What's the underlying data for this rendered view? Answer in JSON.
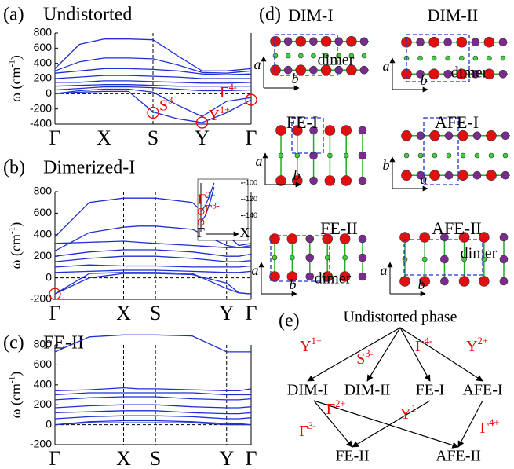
{
  "chart_data": [
    {
      "type": "line",
      "panel": "(a)",
      "title": "Undistorted",
      "ylabel": {
        "text": "ω (cm",
        "sup": "-1",
        "tail": ")"
      },
      "xlim": [
        0,
        4
      ],
      "ylim": [
        -400,
        800
      ],
      "xticks": [
        {
          "value": 0,
          "label": "Γ"
        },
        {
          "value": 1,
          "label": "X"
        },
        {
          "value": 2,
          "label": "S"
        },
        {
          "value": 3,
          "label": "Y"
        },
        {
          "value": 4,
          "label": "Γ"
        }
      ],
      "yticks": [
        -400,
        -200,
        0,
        200,
        400,
        600,
        800
      ],
      "symmetry_lines": true,
      "zero_line": true,
      "x": [
        0,
        0.5,
        1,
        1.5,
        2,
        2.5,
        3,
        3.5,
        4
      ],
      "series": [
        {
          "color": "#1f2fd6",
          "values": [
            330,
            650,
            720,
            720,
            710,
            500,
            300,
            300,
            330
          ]
        },
        {
          "color": "#1f2fd6",
          "values": [
            300,
            420,
            470,
            470,
            460,
            380,
            280,
            270,
            300
          ]
        },
        {
          "color": "#1f2fd6",
          "values": [
            270,
            300,
            330,
            330,
            320,
            300,
            260,
            250,
            260
          ]
        },
        {
          "color": "#1f2fd6",
          "values": [
            200,
            220,
            240,
            240,
            230,
            220,
            200,
            200,
            200
          ]
        },
        {
          "color": "#1f2fd6",
          "values": [
            150,
            150,
            170,
            170,
            160,
            150,
            140,
            140,
            150
          ]
        },
        {
          "color": "#1f2fd6",
          "values": [
            100,
            110,
            120,
            120,
            110,
            100,
            100,
            100,
            100
          ]
        },
        {
          "color": "#1f2fd6",
          "values": [
            50,
            70,
            90,
            90,
            80,
            60,
            40,
            40,
            50
          ]
        },
        {
          "color": "#1f2fd6",
          "values": [
            0,
            20,
            30,
            30,
            -240,
            -330,
            -380,
            -250,
            -80
          ]
        },
        {
          "color": "#1f2fd6",
          "values": [
            0,
            40,
            60,
            60,
            20,
            -150,
            -300,
            -100,
            -50
          ]
        }
      ],
      "annotations": [
        {
          "text": "S",
          "sup": "3-",
          "x": 2,
          "y": -250
        },
        {
          "text": "Y",
          "sup": "1+",
          "x": 3,
          "y": -380
        },
        {
          "text": "Γ",
          "sup": "4-",
          "x": 4,
          "y": -80
        }
      ]
    },
    {
      "type": "line",
      "panel": "(b)",
      "title": "Dimerized-I",
      "ylabel": {
        "text": "ω (cm",
        "sup": "-1",
        "tail": ")"
      },
      "xlim": [
        0,
        4
      ],
      "ylim": [
        -200,
        800
      ],
      "xticks": [
        {
          "value": 0,
          "label": "Γ"
        },
        {
          "value": 1.4,
          "label": "X"
        },
        {
          "value": 2.05,
          "label": "S"
        },
        {
          "value": 3.5,
          "label": "Y"
        },
        {
          "value": 4,
          "label": "Γ"
        }
      ],
      "yticks": [
        -200,
        0,
        200,
        400,
        600,
        800
      ],
      "symmetry_lines": true,
      "zero_line": true,
      "x": [
        0,
        0.7,
        1.4,
        1.7,
        2.05,
        2.8,
        3.5,
        3.75,
        4
      ],
      "series": [
        {
          "color": "#1f2fd6",
          "values": [
            380,
            700,
            740,
            740,
            740,
            700,
            400,
            300,
            320
          ]
        },
        {
          "color": "#1f2fd6",
          "values": [
            250,
            420,
            470,
            480,
            480,
            450,
            300,
            280,
            300
          ]
        },
        {
          "color": "#1f2fd6",
          "values": [
            320,
            330,
            340,
            330,
            320,
            300,
            280,
            280,
            280
          ]
        },
        {
          "color": "#1f2fd6",
          "values": [
            200,
            240,
            260,
            260,
            260,
            240,
            200,
            200,
            220
          ]
        },
        {
          "color": "#1f2fd6",
          "values": [
            150,
            180,
            200,
            200,
            200,
            180,
            150,
            150,
            160
          ]
        },
        {
          "color": "#1f2fd6",
          "values": [
            100,
            120,
            110,
            110,
            110,
            100,
            100,
            100,
            110
          ]
        },
        {
          "color": "#1f2fd6",
          "values": [
            50,
            60,
            70,
            70,
            70,
            60,
            50,
            50,
            60
          ]
        },
        {
          "color": "#1f2fd6",
          "values": [
            -150,
            40,
            50,
            50,
            50,
            40,
            -100,
            -140,
            -150
          ]
        },
        {
          "color": "#1f2fd6",
          "values": [
            -150,
            0,
            40,
            40,
            40,
            30,
            -50,
            -140,
            -150
          ]
        }
      ],
      "annotations": [
        {
          "x": 0,
          "y": -150
        }
      ],
      "inset": {
        "xlim": [
          0,
          1
        ],
        "ylim": [
          -150,
          -100
        ],
        "xticks": [
          {
            "value": 0,
            "label": "Γ"
          },
          {
            "value": 1,
            "label": "X"
          }
        ],
        "yticks": [
          -100,
          -120,
          -140
        ],
        "x": [
          0,
          0.1,
          0.2,
          0.3
        ],
        "series": [
          {
            "color": "#1f2fd6",
            "values": [
              -135,
              -128,
              -115,
              -100
            ]
          },
          {
            "color": "#1f2fd6",
            "values": [
              -148,
              -140,
              -125,
              -105
            ]
          }
        ],
        "annotations": [
          {
            "text": "Γ",
            "sup": "2+",
            "x": 0,
            "y": -135
          },
          {
            "text": "Γ",
            "sup": "3-",
            "x": 0,
            "y": -148
          }
        ]
      }
    },
    {
      "type": "line",
      "panel": "(c)",
      "title": "FE-II",
      "ylabel": {
        "text": "ω (cm",
        "sup": "-1",
        "tail": ")"
      },
      "xlim": [
        0,
        4
      ],
      "ylim": [
        -200,
        800
      ],
      "xticks": [
        {
          "value": 0,
          "label": "Γ"
        },
        {
          "value": 1.4,
          "label": "X"
        },
        {
          "value": 2.05,
          "label": "S"
        },
        {
          "value": 3.5,
          "label": "Y"
        },
        {
          "value": 4,
          "label": "Γ"
        }
      ],
      "yticks": [
        -200,
        0,
        200,
        400,
        600,
        800
      ],
      "symmetry_lines": true,
      "zero_line": true,
      "x": [
        0,
        0.7,
        1.4,
        1.7,
        2.05,
        2.8,
        3.5,
        3.75,
        4
      ],
      "series": [
        {
          "color": "#1f2fd6",
          "values": [
            730,
            880,
            900,
            900,
            900,
            890,
            730,
            730,
            730
          ]
        },
        {
          "color": "#1f2fd6",
          "values": [
            340,
            350,
            370,
            360,
            360,
            350,
            340,
            340,
            360
          ]
        },
        {
          "color": "#1f2fd6",
          "values": [
            300,
            320,
            320,
            320,
            320,
            320,
            300,
            300,
            300
          ]
        },
        {
          "color": "#1f2fd6",
          "values": [
            250,
            270,
            280,
            280,
            280,
            260,
            250,
            250,
            260
          ]
        },
        {
          "color": "#1f2fd6",
          "values": [
            170,
            190,
            200,
            200,
            200,
            180,
            170,
            170,
            180
          ]
        },
        {
          "color": "#1f2fd6",
          "values": [
            120,
            130,
            140,
            140,
            140,
            120,
            110,
            110,
            120
          ]
        },
        {
          "color": "#1f2fd6",
          "values": [
            60,
            80,
            90,
            90,
            90,
            80,
            60,
            60,
            70
          ]
        },
        {
          "color": "#1f2fd6",
          "values": [
            0,
            30,
            40,
            40,
            40,
            30,
            10,
            10,
            0
          ]
        },
        {
          "color": "#1f2fd6",
          "values": [
            0,
            20,
            20,
            20,
            20,
            20,
            0,
            0,
            0
          ]
        }
      ],
      "annotations": []
    }
  ],
  "structures": {
    "label": "(d)",
    "panels": [
      {
        "title": "DIM-I",
        "axes": [
          "a",
          "b"
        ],
        "note": "dimer"
      },
      {
        "title": "DIM-II",
        "axes": [
          "a",
          "b"
        ],
        "note": "dimer"
      },
      {
        "title": "FE-I",
        "axes": [
          "a",
          "b"
        ]
      },
      {
        "title": "AFE-I",
        "axes": [
          "b",
          "a"
        ]
      },
      {
        "title": "FE-II",
        "axes": [
          "a",
          "b"
        ],
        "note": "dimer"
      },
      {
        "title": "AFE-II",
        "axes": [
          "a",
          "b"
        ],
        "note": "dimer"
      }
    ]
  },
  "diagram": {
    "label": "(e)",
    "nodes": [
      "Undistorted phase",
      "DIM-I",
      "DIM-II",
      "FE-I",
      "AFE-I",
      "FE-II",
      "AFE-II"
    ],
    "edges": [
      {
        "text": "Y",
        "sup": "1+"
      },
      {
        "text": "S",
        "sup": "3-"
      },
      {
        "text": "Γ",
        "sup": "4-"
      },
      {
        "text": "Y",
        "sup": "2+"
      },
      {
        "text": "Γ",
        "sup": "2+"
      },
      {
        "text": "Y",
        "sup": "1"
      },
      {
        "text": "Γ",
        "sup": "3-"
      },
      {
        "text": "Γ",
        "sup": "4+"
      }
    ]
  }
}
